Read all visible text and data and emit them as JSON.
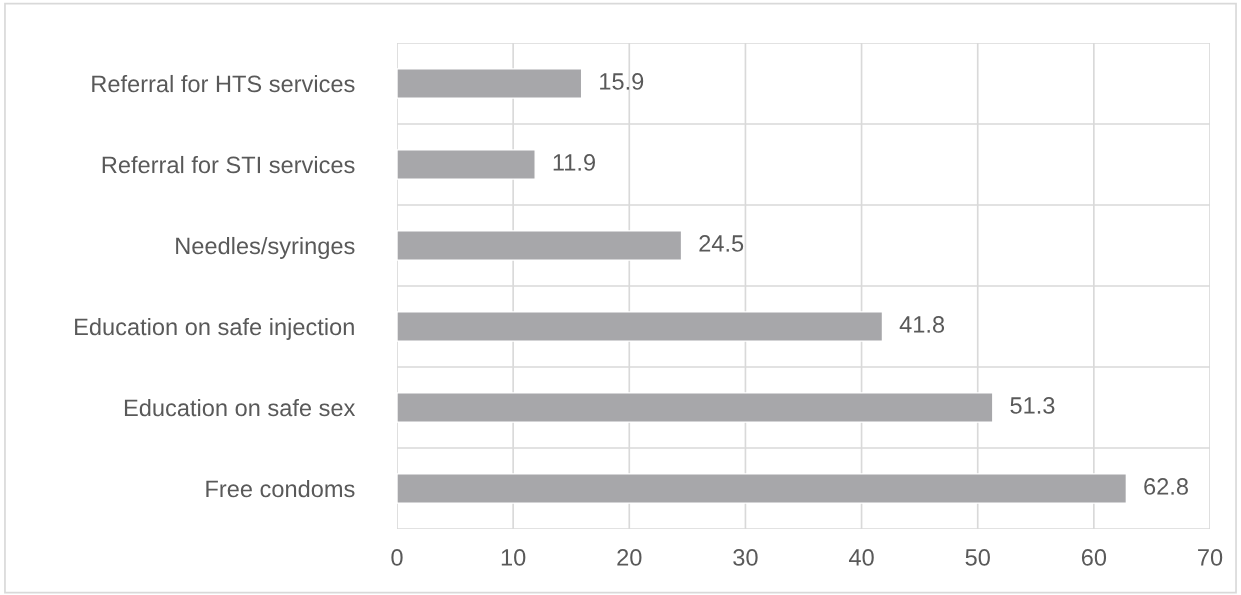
{
  "chart_data": {
    "type": "bar",
    "orientation": "horizontal",
    "categories": [
      "Referral for HTS services",
      "Referral for STI services",
      "Needles/syringes",
      "Education on safe injection",
      "Education on safe sex",
      "Free condoms"
    ],
    "values": [
      15.9,
      11.9,
      24.5,
      41.8,
      51.3,
      62.8
    ],
    "color": "#a7a7aa",
    "xlim": [
      0,
      70
    ],
    "xticks": [
      0,
      10,
      20,
      30,
      40,
      50,
      60,
      70
    ],
    "grid": true,
    "data_labels": true
  }
}
